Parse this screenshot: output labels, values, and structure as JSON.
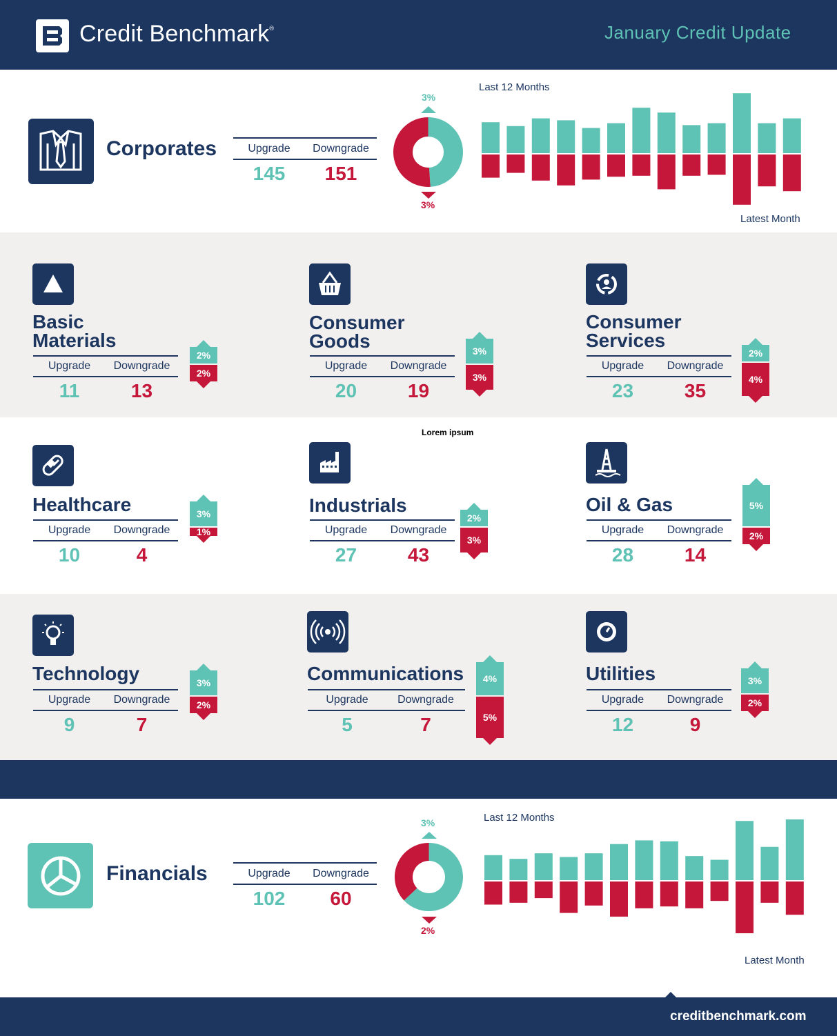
{
  "header": {
    "brand": "Credit Benchmark",
    "registered": "®",
    "report_title": "January Credit Update"
  },
  "colors": {
    "navy": "#1c3660",
    "teal": "#5ec2b4",
    "red": "#c4173a",
    "grey_band": "#f2f0ef"
  },
  "labels": {
    "upgrade": "Upgrade",
    "downgrade": "Downgrade",
    "last12": "Last 12 Months",
    "latest": "Latest Month"
  },
  "corporates": {
    "title": "Corporates",
    "icon": "shirt-tie-icon",
    "upgrade": "145",
    "downgrade": "151",
    "upgrade_pct": "3%",
    "downgrade_pct": "3%"
  },
  "financials": {
    "title": "Financials",
    "icon": "pie-chart-icon",
    "upgrade": "102",
    "downgrade": "60",
    "upgrade_pct": "3%",
    "downgrade_pct": "2%"
  },
  "sectors": [
    {
      "title_line1": "Basic",
      "title_line2": "Materials",
      "icon": "triangle-icon",
      "upgrade": "11",
      "downgrade": "13",
      "up_pct": "2%",
      "down_pct": "2%"
    },
    {
      "title_line1": "Consumer",
      "title_line2": "Goods",
      "icon": "basket-icon",
      "upgrade": "20",
      "downgrade": "19",
      "up_pct": "3%",
      "down_pct": "3%"
    },
    {
      "title_line1": "Consumer",
      "title_line2": "Services",
      "icon": "service-cycle-icon",
      "upgrade": "23",
      "downgrade": "35",
      "up_pct": "2%",
      "down_pct": "4%"
    },
    {
      "title_line1": "Healthcare",
      "title_line2": "",
      "icon": "pill-icon",
      "upgrade": "10",
      "downgrade": "4",
      "up_pct": "3%",
      "down_pct": "1%"
    },
    {
      "title_line1": "Industrials",
      "title_line2": "",
      "icon": "factory-icon",
      "upgrade": "27",
      "downgrade": "43",
      "up_pct": "2%",
      "down_pct": "3%"
    },
    {
      "title_line1": "Oil & Gas",
      "title_line2": "",
      "icon": "oil-rig-icon",
      "upgrade": "28",
      "downgrade": "14",
      "up_pct": "5%",
      "down_pct": "2%"
    },
    {
      "title_line1": "Technology",
      "title_line2": "",
      "icon": "lightbulb-icon",
      "upgrade": "9",
      "downgrade": "7",
      "up_pct": "3%",
      "down_pct": "2%"
    },
    {
      "title_line1": "Communications",
      "title_line2": "",
      "icon": "signal-icon",
      "upgrade": "5",
      "downgrade": "7",
      "up_pct": "4%",
      "down_pct": "5%"
    },
    {
      "title_line1": "Utilities",
      "title_line2": "",
      "icon": "gauge-icon",
      "upgrade": "12",
      "downgrade": "9",
      "up_pct": "3%",
      "down_pct": "2%"
    }
  ],
  "lorem": "Lorem ipsum",
  "footer": {
    "url": "creditbenchmark.com"
  },
  "chart_data": [
    {
      "type": "donut",
      "slices": [
        {
          "name": "Upgrade",
          "value": 145
        },
        {
          "name": "Downgrade",
          "value": 151
        }
      ],
      "top_label": "3%",
      "bottom_label": "3%"
    },
    {
      "type": "bar",
      "title": "Last 12 Months",
      "xlabel": "Latest Month",
      "series": [
        {
          "name": "Upgrade",
          "values": [
            3.2,
            2.8,
            3.6,
            3.4,
            2.6,
            3.1,
            4.7,
            4.2,
            2.9,
            3.1,
            6.2,
            3.1,
            3.6
          ]
        },
        {
          "name": "Downgrade",
          "values": [
            2.4,
            1.9,
            2.7,
            3.2,
            2.6,
            2.3,
            2.2,
            3.6,
            2.2,
            2.1,
            5.2,
            3.3,
            3.8
          ]
        }
      ]
    },
    {
      "type": "donut",
      "slices": [
        {
          "name": "Upgrade",
          "value": 102
        },
        {
          "name": "Downgrade",
          "value": 60
        }
      ],
      "top_label": "3%",
      "bottom_label": "2%"
    },
    {
      "type": "bar",
      "title": "Last 12 Months",
      "xlabel": "Latest Month",
      "series": [
        {
          "name": "Upgrade",
          "values": [
            2.7,
            2.3,
            2.9,
            2.5,
            2.9,
            3.9,
            4.3,
            4.2,
            2.6,
            2.2,
            6.4,
            3.6,
            6.6
          ]
        },
        {
          "name": "Downgrade",
          "values": [
            2.5,
            2.3,
            1.8,
            3.4,
            2.6,
            3.8,
            2.9,
            2.7,
            2.9,
            2.1,
            5.6,
            2.3,
            3.6
          ]
        }
      ]
    }
  ]
}
